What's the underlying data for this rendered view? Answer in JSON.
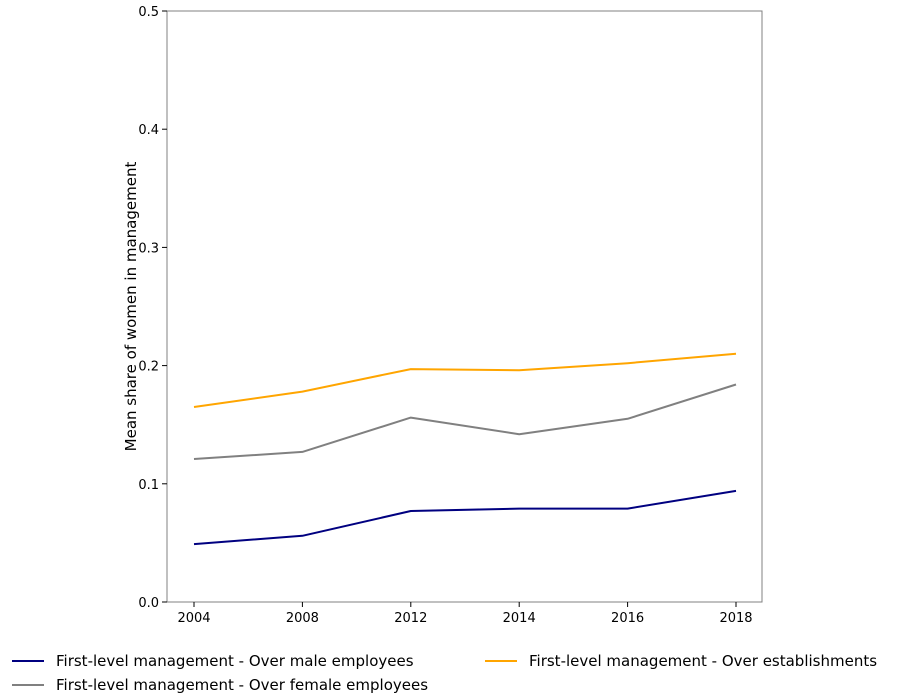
{
  "chart_data": {
    "type": "line",
    "title": "",
    "xlabel": "",
    "ylabel": "Mean share of women in management",
    "categories": [
      "2004",
      "2008",
      "2012",
      "2014",
      "2016",
      "2018"
    ],
    "ylim": [
      0.0,
      0.5
    ],
    "yticks": [
      "0.0",
      "0.1",
      "0.2",
      "0.3",
      "0.4",
      "0.5"
    ],
    "grid": false,
    "legend_position": "bottom",
    "series": [
      {
        "name": "First-level management - Over male employees",
        "color": "#000080",
        "values": [
          0.049,
          0.056,
          0.077,
          0.079,
          0.079,
          0.094
        ]
      },
      {
        "name": "First-level management - Over female employees",
        "color": "#808080",
        "values": [
          0.121,
          0.127,
          0.156,
          0.142,
          0.155,
          0.184
        ]
      },
      {
        "name": "First-level management - Over establishments",
        "color": "#FFA500",
        "values": [
          0.165,
          0.178,
          0.197,
          0.196,
          0.202,
          0.21
        ]
      }
    ]
  }
}
